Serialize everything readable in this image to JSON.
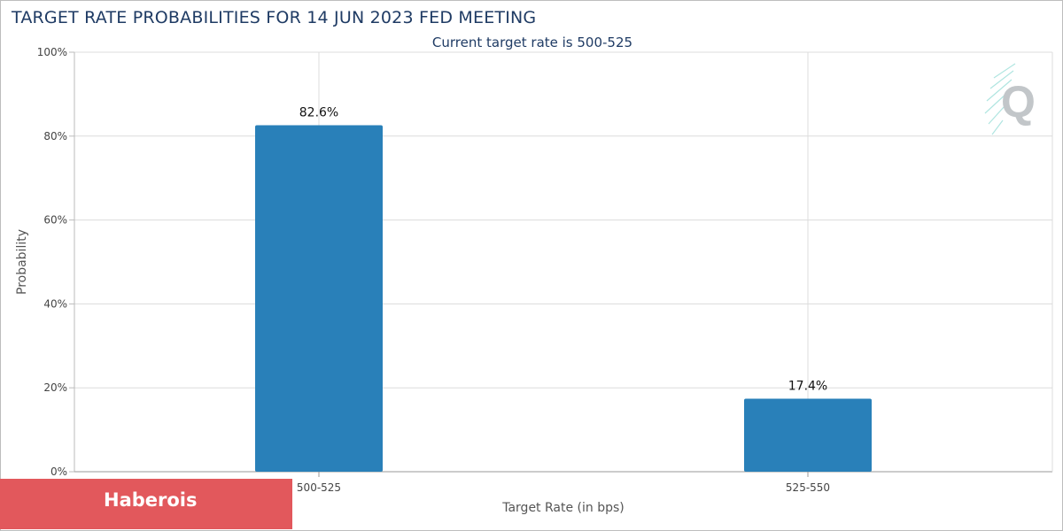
{
  "title": "TARGET RATE PROBABILITIES FOR 14 JUN 2023 FED MEETING",
  "subtitle": "Current target rate is 500-525",
  "watermark": "Haberois",
  "logo_icon": "cme-fedwatch-q-logo",
  "colors": {
    "bar": "#2980b9",
    "title": "#1f3b64",
    "grid": "#dcdcdc",
    "banner": "#e2585c"
  },
  "chart_data": {
    "type": "bar",
    "title": "TARGET RATE PROBABILITIES FOR 14 JUN 2023 FED MEETING",
    "subtitle": "Current target rate is 500-525",
    "xlabel": "Target Rate (in bps)",
    "ylabel": "Probability",
    "categories": [
      "500-525",
      "525-550"
    ],
    "values": [
      82.6,
      17.4
    ],
    "data_labels": [
      "82.6%",
      "17.4%"
    ],
    "ylim": [
      0,
      100
    ],
    "yticks": [
      0,
      20,
      40,
      60,
      80,
      100
    ],
    "ytick_labels": [
      "0%",
      "20%",
      "40%",
      "60%",
      "80%",
      "100%"
    ],
    "grid": true,
    "legend": "none"
  }
}
